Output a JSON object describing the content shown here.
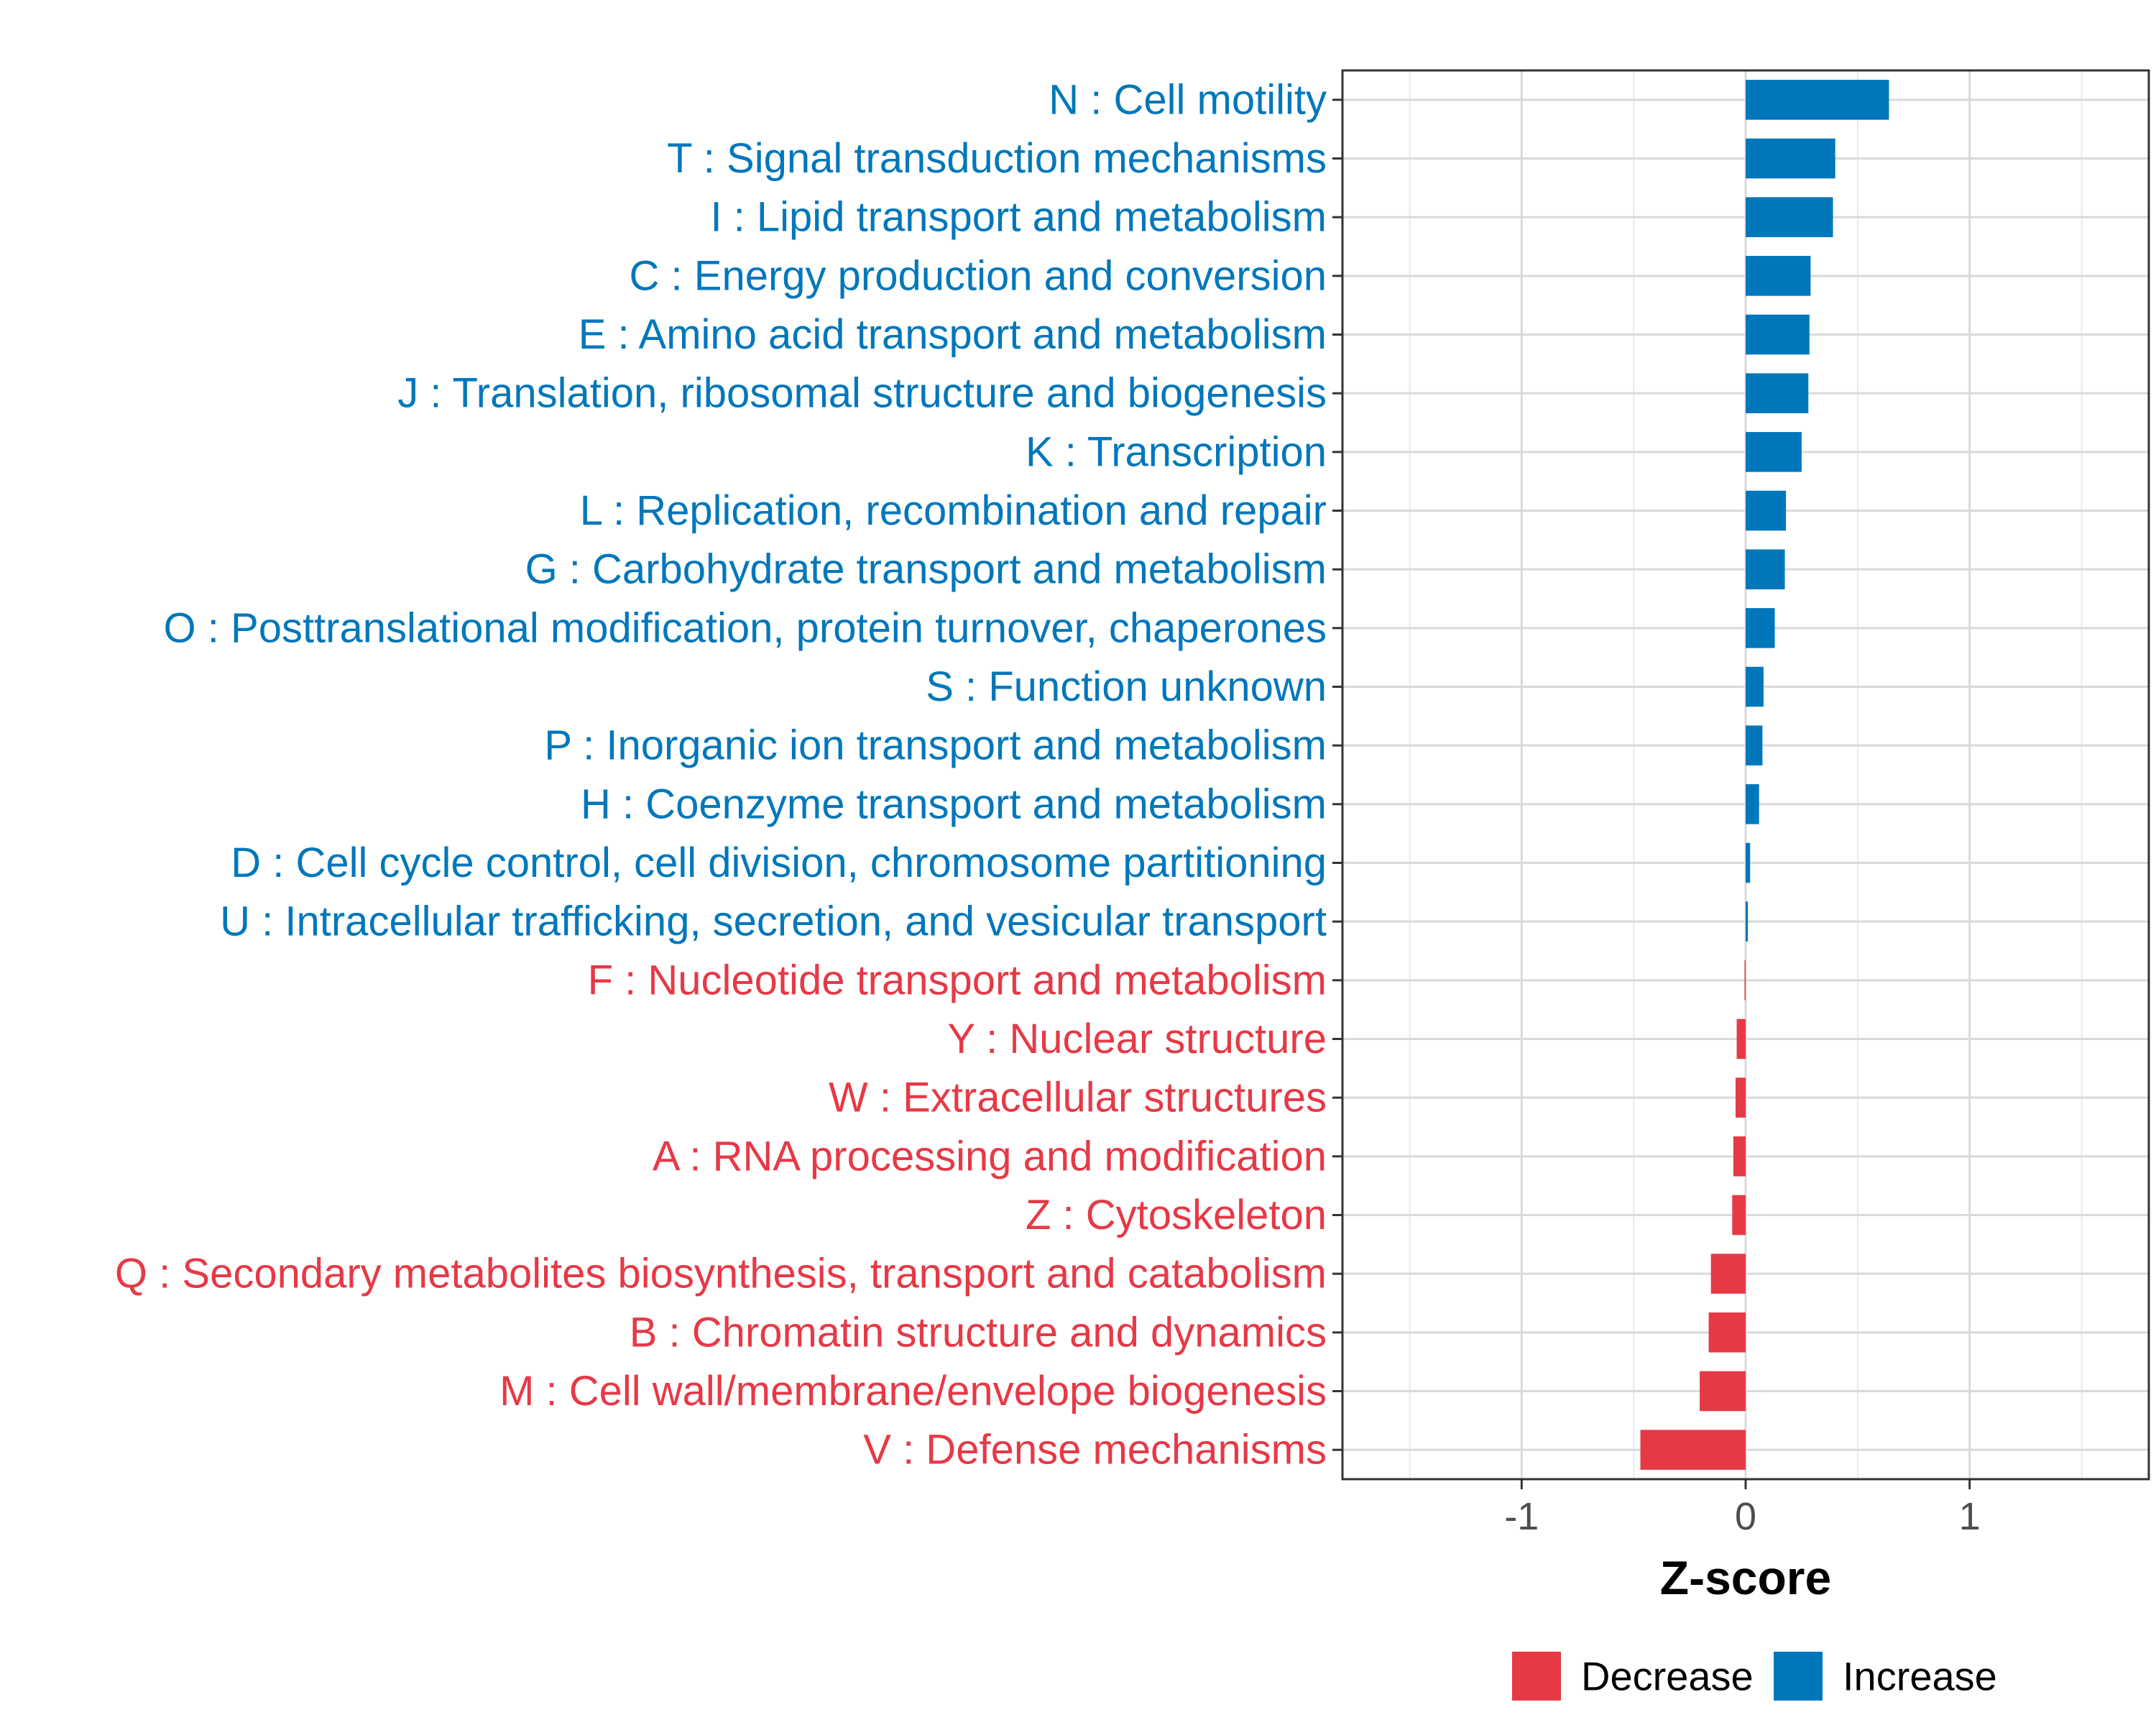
{
  "chart_data": {
    "type": "bar",
    "orientation": "horizontal",
    "xlabel": "Z-score",
    "ylabel": "",
    "xlim": [
      -1.8,
      1.8
    ],
    "xticks": [
      {
        "value": -1,
        "label": "-1"
      },
      {
        "value": 0,
        "label": "0"
      },
      {
        "value": 1,
        "label": "1"
      }
    ],
    "grid": true,
    "legend_position": "bottom",
    "legend": [
      {
        "name": "Decrease",
        "color": "#E63946"
      },
      {
        "name": "Increase",
        "color": "#0077BB"
      }
    ],
    "colors": {
      "Decrease": "#E63946",
      "Increase": "#0077BB"
    },
    "categories": [
      {
        "label": "N : Cell motility",
        "value": 0.64,
        "group": "Increase"
      },
      {
        "label": "T : Signal transduction mechanisms",
        "value": 0.4,
        "group": "Increase"
      },
      {
        "label": "I : Lipid transport and metabolism",
        "value": 0.39,
        "group": "Increase"
      },
      {
        "label": "C : Energy production and conversion",
        "value": 0.29,
        "group": "Increase"
      },
      {
        "label": "E : Amino acid transport and metabolism",
        "value": 0.285,
        "group": "Increase"
      },
      {
        "label": "J : Translation, ribosomal structure and biogenesis",
        "value": 0.28,
        "group": "Increase"
      },
      {
        "label": "K : Transcription",
        "value": 0.25,
        "group": "Increase"
      },
      {
        "label": "L : Replication, recombination and repair",
        "value": 0.18,
        "group": "Increase"
      },
      {
        "label": "G : Carbohydrate transport and metabolism",
        "value": 0.175,
        "group": "Increase"
      },
      {
        "label": "O : Posttranslational modification, protein turnover, chaperones",
        "value": 0.13,
        "group": "Increase"
      },
      {
        "label": "S : Function unknown",
        "value": 0.08,
        "group": "Increase"
      },
      {
        "label": "P : Inorganic ion transport and metabolism",
        "value": 0.075,
        "group": "Increase"
      },
      {
        "label": "H : Coenzyme transport and metabolism",
        "value": 0.06,
        "group": "Increase"
      },
      {
        "label": "D : Cell cycle control, cell division, chromosome partitioning",
        "value": 0.02,
        "group": "Increase"
      },
      {
        "label": "U : Intracellular trafficking, secretion, and vesicular transport",
        "value": 0.01,
        "group": "Increase"
      },
      {
        "label": "F : Nucleotide transport and metabolism",
        "value": -0.005,
        "group": "Decrease"
      },
      {
        "label": "Y : Nuclear structure",
        "value": -0.04,
        "group": "Decrease"
      },
      {
        "label": "W : Extracellular structures",
        "value": -0.045,
        "group": "Decrease"
      },
      {
        "label": "A : RNA processing and modification",
        "value": -0.055,
        "group": "Decrease"
      },
      {
        "label": "Z : Cytoskeleton",
        "value": -0.06,
        "group": "Decrease"
      },
      {
        "label": "Q : Secondary metabolites biosynthesis, transport and catabolism",
        "value": -0.155,
        "group": "Decrease"
      },
      {
        "label": "B : Chromatin structure and dynamics",
        "value": -0.165,
        "group": "Decrease"
      },
      {
        "label": "M : Cell wall/membrane/envelope biogenesis",
        "value": -0.205,
        "group": "Decrease"
      },
      {
        "label": "V : Defense mechanisms",
        "value": -0.47,
        "group": "Decrease"
      }
    ]
  }
}
